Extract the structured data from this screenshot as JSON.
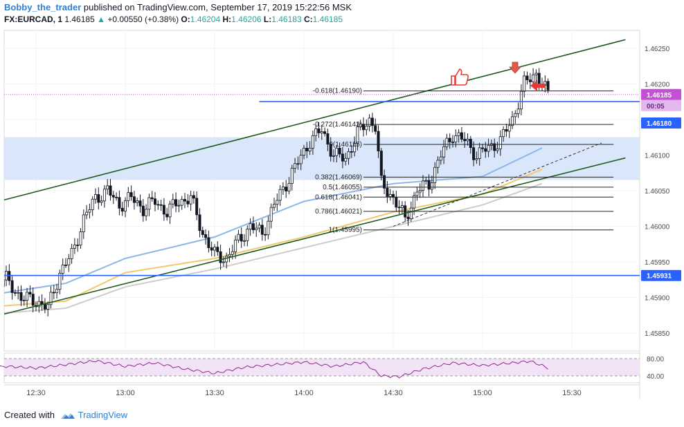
{
  "header": {
    "author": "Bobby_the_trader",
    "published_text": "published on TradingView.com, September 17, 2019 15:22:56 MSK",
    "symbol": "FX:EURCAD, 1",
    "last": "1.46185",
    "change": "+0.00550 (+0.38%)",
    "o_label": "O:",
    "o": "1.46204",
    "h_label": "H:",
    "h": "1.46206",
    "l_label": "L:",
    "l": "1.46183",
    "c_label": "C:",
    "c": "1.46185"
  },
  "footer": {
    "created_with": "Created with",
    "brand": "TradingView"
  },
  "colors": {
    "candle": "#131722",
    "channel": "#1e5a1e",
    "hline": "#2962ff",
    "zone": "#d6e4fb",
    "ma_fast": "#8db6e8",
    "ma_mid": "#f0c96b",
    "ma_slow": "#cccccc",
    "rsi_line": "#8e2a8e",
    "rsi_bg": "#f2e3f7",
    "price_tag": "#2962ff",
    "current_tag": "#c54fd6",
    "arrow": "#e53935"
  },
  "chart_data": {
    "type": "candlestick",
    "x_ticks": [
      "12:30",
      "13:00",
      "13:30",
      "14:00",
      "14:30",
      "15:00",
      "15:30"
    ],
    "price_axis_ticks": [
      "1.46250",
      "1.46200",
      "1.46150",
      "1.46100",
      "1.46050",
      "1.46000",
      "1.45950",
      "1.45900",
      "1.45850"
    ],
    "ylim": [
      1.45825,
      1.46275
    ],
    "price_tags": [
      {
        "label": "1.46185",
        "value": 1.46185,
        "kind": "current"
      },
      {
        "label": "00:05",
        "value": 1.46185,
        "kind": "timer"
      },
      {
        "label": "1.46180",
        "value": 1.4618,
        "kind": "level"
      },
      {
        "label": "1.45931",
        "value": 1.45931,
        "kind": "level"
      }
    ],
    "horizontal_lines": [
      1.45931,
      1.46175
    ],
    "support_zone": [
      1.46065,
      1.46125
    ],
    "fibonacci": [
      {
        "label": "-0.618(1.46190)",
        "ratio": -0.618,
        "value": 1.4619
      },
      {
        "label": "-0.272(1.46143)",
        "ratio": -0.272,
        "value": 1.46143
      },
      {
        "label": "0(1.46115)",
        "ratio": 0,
        "value": 1.46115
      },
      {
        "label": "0.382(1.46069)",
        "ratio": 0.382,
        "value": 1.46069
      },
      {
        "label": "0.5(1.46055)",
        "ratio": 0.5,
        "value": 1.46055
      },
      {
        "label": "0.618(1.46041)",
        "ratio": 0.618,
        "value": 1.46041
      },
      {
        "label": "0.786(1.46021)",
        "ratio": 0.786,
        "value": 1.46021
      },
      {
        "label": "1(1.45995)",
        "ratio": 1,
        "value": 1.45995
      }
    ],
    "channel": {
      "upper": [
        [
          "12:09",
          1.46026
        ],
        [
          "15:48",
          1.46262
        ]
      ],
      "lower": [
        [
          "12:09",
          1.45866
        ],
        [
          "15:48",
          1.46096
        ]
      ]
    },
    "dashed_line": [
      [
        "14:30",
        1.46
      ],
      [
        "15:40",
        1.46117
      ]
    ],
    "moving_averages": [
      {
        "color_key": "ma_fast",
        "points": [
          [
            "12:09",
            1.459
          ],
          [
            "12:40",
            1.4592
          ],
          [
            "13:00",
            1.45955
          ],
          [
            "13:30",
            1.45985
          ],
          [
            "14:00",
            1.46035
          ],
          [
            "14:30",
            1.4606
          ],
          [
            "15:00",
            1.4607
          ],
          [
            "15:20",
            1.4611
          ]
        ]
      },
      {
        "color_key": "ma_mid",
        "points": [
          [
            "12:09",
            1.45885
          ],
          [
            "12:40",
            1.45895
          ],
          [
            "13:00",
            1.45935
          ],
          [
            "13:30",
            1.45955
          ],
          [
            "14:00",
            1.45985
          ],
          [
            "14:30",
            1.4602
          ],
          [
            "15:00",
            1.46045
          ],
          [
            "15:20",
            1.4608
          ]
        ]
      },
      {
        "color_key": "ma_slow",
        "points": [
          [
            "12:09",
            1.45875
          ],
          [
            "12:40",
            1.45885
          ],
          [
            "13:00",
            1.45915
          ],
          [
            "13:30",
            1.4594
          ],
          [
            "14:00",
            1.4597
          ],
          [
            "14:30",
            1.46
          ],
          [
            "15:00",
            1.4603
          ],
          [
            "15:20",
            1.4606
          ]
        ]
      }
    ],
    "close_path": [
      [
        "12:10",
        1.4588
      ],
      [
        "12:15",
        1.4592
      ],
      [
        "12:20",
        1.45925
      ],
      [
        "12:25",
        1.459
      ],
      [
        "12:30",
        1.45895
      ],
      [
        "12:34",
        1.45885
      ],
      [
        "12:38",
        1.45935
      ],
      [
        "12:42",
        1.4596
      ],
      [
        "12:46",
        1.4601
      ],
      [
        "12:50",
        1.4604
      ],
      [
        "12:54",
        1.4605
      ],
      [
        "12:58",
        1.4603
      ],
      [
        "13:02",
        1.4604
      ],
      [
        "13:06",
        1.46025
      ],
      [
        "13:10",
        1.46035
      ],
      [
        "13:14",
        1.4602
      ],
      [
        "13:18",
        1.46035
      ],
      [
        "13:22",
        1.4604
      ],
      [
        "13:26",
        1.4599
      ],
      [
        "13:30",
        1.4596
      ],
      [
        "13:34",
        1.45955
      ],
      [
        "13:38",
        1.4598
      ],
      [
        "13:42",
        1.46
      ],
      [
        "13:46",
        1.4599
      ],
      [
        "13:50",
        1.4603
      ],
      [
        "13:54",
        1.4606
      ],
      [
        "13:58",
        1.4609
      ],
      [
        "14:02",
        1.4612
      ],
      [
        "14:06",
        1.46135
      ],
      [
        "14:10",
        1.461
      ],
      [
        "14:14",
        1.46095
      ],
      [
        "14:18",
        1.4613
      ],
      [
        "14:22",
        1.4615
      ],
      [
        "14:24",
        1.4614
      ],
      [
        "14:26",
        1.4606
      ],
      [
        "14:30",
        1.4604
      ],
      [
        "14:34",
        1.4601
      ],
      [
        "14:38",
        1.4605
      ],
      [
        "14:42",
        1.4606
      ],
      [
        "14:46",
        1.461
      ],
      [
        "14:50",
        1.4613
      ],
      [
        "14:54",
        1.4612
      ],
      [
        "14:58",
        1.461
      ],
      [
        "15:02",
        1.4611
      ],
      [
        "15:06",
        1.4612
      ],
      [
        "15:10",
        1.4615
      ],
      [
        "15:14",
        1.462
      ],
      [
        "15:18",
        1.46215
      ],
      [
        "15:20",
        1.462
      ],
      [
        "15:22",
        1.46185
      ]
    ],
    "rsi": {
      "levels": [
        "80.00",
        "40.00"
      ],
      "points": [
        [
          "12:10",
          55
        ],
        [
          "12:20",
          62
        ],
        [
          "12:30",
          58
        ],
        [
          "12:40",
          66
        ],
        [
          "12:50",
          75
        ],
        [
          "13:00",
          62
        ],
        [
          "13:10",
          70
        ],
        [
          "13:20",
          56
        ],
        [
          "13:30",
          46
        ],
        [
          "13:40",
          60
        ],
        [
          "13:50",
          66
        ],
        [
          "14:00",
          72
        ],
        [
          "14:10",
          62
        ],
        [
          "14:20",
          72
        ],
        [
          "14:26",
          40
        ],
        [
          "14:32",
          38
        ],
        [
          "14:40",
          56
        ],
        [
          "14:50",
          70
        ],
        [
          "15:00",
          64
        ],
        [
          "15:10",
          70
        ],
        [
          "15:16",
          74
        ],
        [
          "15:20",
          64
        ],
        [
          "15:22",
          58
        ]
      ]
    },
    "annotations": [
      "thumbs-up",
      "arrow-down",
      "arrow-left"
    ]
  }
}
